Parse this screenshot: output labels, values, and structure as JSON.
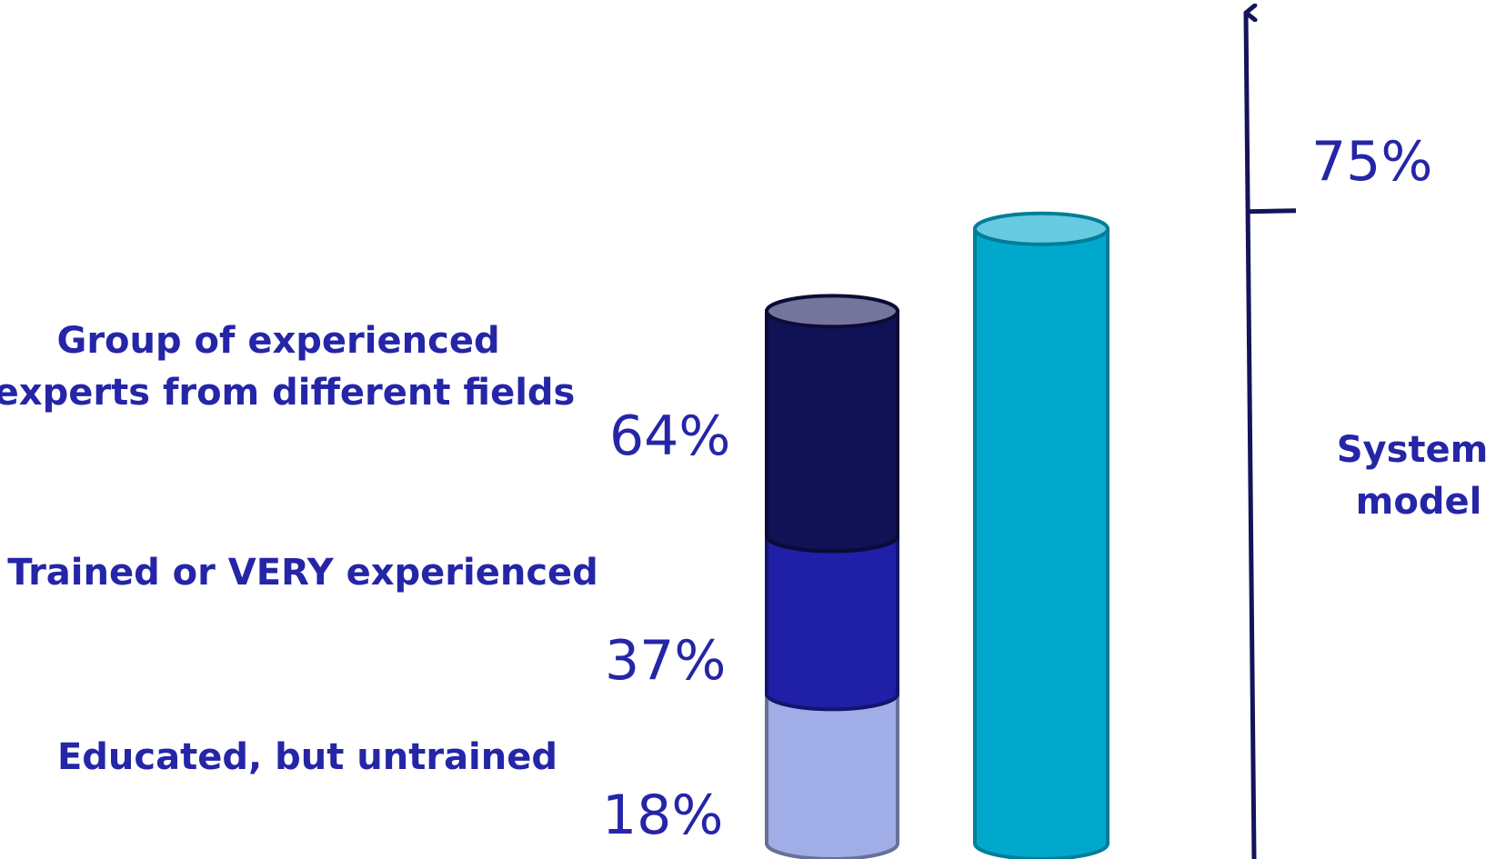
{
  "chart_data": {
    "type": "bar",
    "stacked_bar": {
      "segments": [
        {
          "name": "Educated, but untrained",
          "value": 18,
          "label": "18%",
          "color": "#a0ade6"
        },
        {
          "name": "Trained or VERY experienced",
          "value": 37,
          "label": "37%",
          "color": "#1f1fa8"
        },
        {
          "name": "Group of experienced experts from different fields",
          "name_lines": [
            "Group of experienced",
            "experts from different fields"
          ],
          "value": 64,
          "label": "64%",
          "color": "#111155"
        }
      ]
    },
    "reference_bar": {
      "name": "System model",
      "name_lines": [
        "System",
        "model"
      ],
      "value": 75,
      "label": "75%",
      "color": "#00a8cc"
    },
    "axis": {
      "tick_value": 75,
      "color": "#14145a"
    },
    "ylim": [
      0,
      90
    ]
  }
}
